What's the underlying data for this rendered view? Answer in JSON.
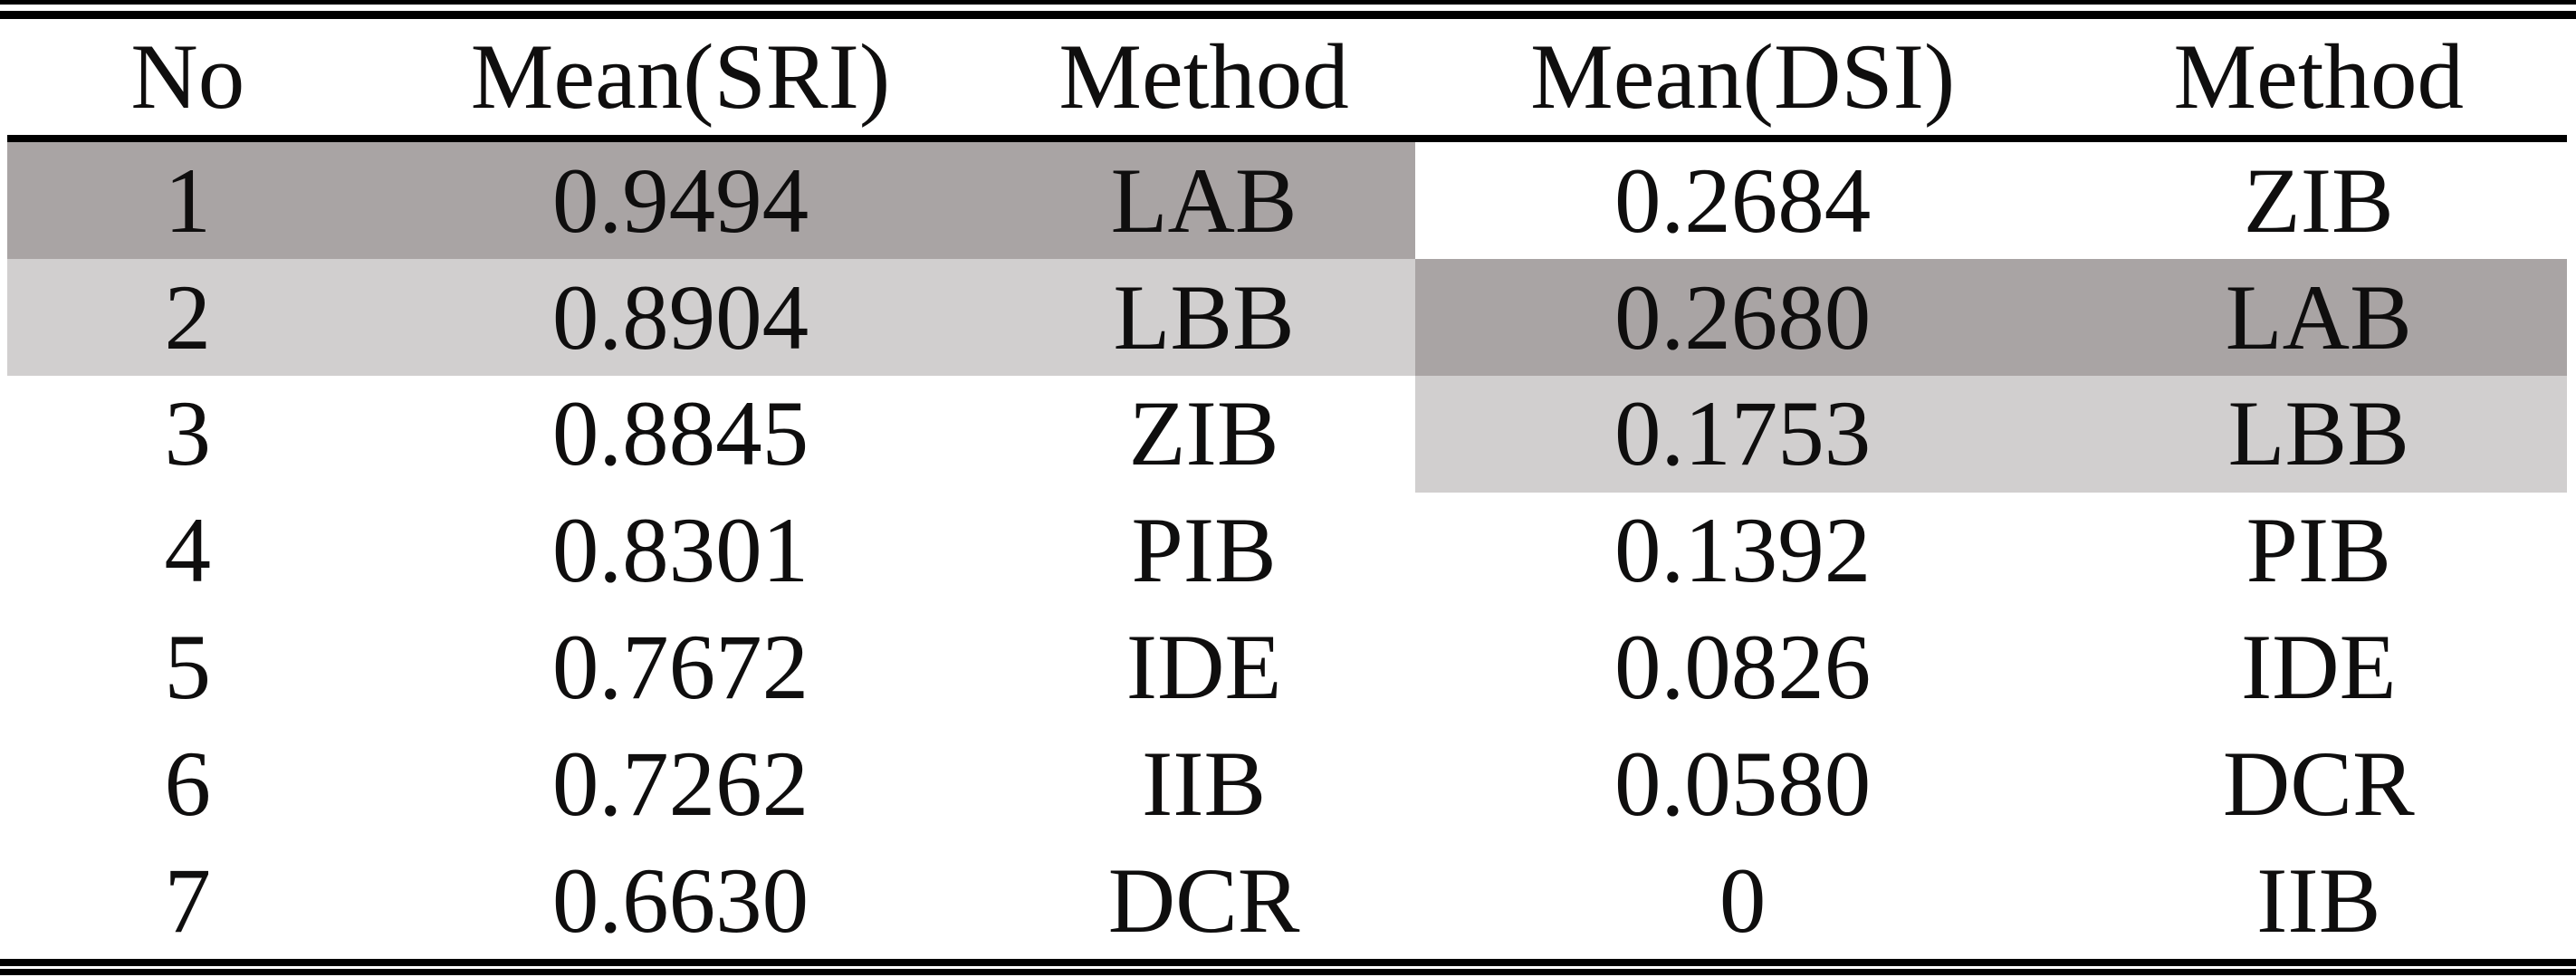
{
  "page": {
    "background": "#ffffff",
    "text_color": "#0f0e0e",
    "rule_color": "#000000"
  },
  "table": {
    "columns": [
      "No",
      "Mean(SRI)",
      "Method",
      "Mean(DSI)",
      "Method"
    ],
    "highlight_colors": {
      "dark": "#a9a4a4",
      "light": "#d1cfcf"
    },
    "rows": [
      {
        "no": "1",
        "mean_sri": "0.9494",
        "sri_method": "LAB",
        "mean_dsi": "0.2684",
        "dsi_method": "ZIB",
        "left_highlight": "dark",
        "right_highlight": "none"
      },
      {
        "no": "2",
        "mean_sri": "0.8904",
        "sri_method": "LBB",
        "mean_dsi": "0.2680",
        "dsi_method": "LAB",
        "left_highlight": "light",
        "right_highlight": "dark"
      },
      {
        "no": "3",
        "mean_sri": "0.8845",
        "sri_method": "ZIB",
        "mean_dsi": "0.1753",
        "dsi_method": "LBB",
        "left_highlight": "none",
        "right_highlight": "light"
      },
      {
        "no": "4",
        "mean_sri": "0.8301",
        "sri_method": "PIB",
        "mean_dsi": "0.1392",
        "dsi_method": "PIB",
        "left_highlight": "none",
        "right_highlight": "none"
      },
      {
        "no": "5",
        "mean_sri": "0.7672",
        "sri_method": "IDE",
        "mean_dsi": "0.0826",
        "dsi_method": "IDE",
        "left_highlight": "none",
        "right_highlight": "none"
      },
      {
        "no": "6",
        "mean_sri": "0.7262",
        "sri_method": "IIB",
        "mean_dsi": "0.0580",
        "dsi_method": "DCR",
        "left_highlight": "none",
        "right_highlight": "none"
      },
      {
        "no": "7",
        "mean_sri": "0.6630",
        "sri_method": "DCR",
        "mean_dsi": "0",
        "dsi_method": "IIB",
        "left_highlight": "none",
        "right_highlight": "none"
      }
    ]
  }
}
